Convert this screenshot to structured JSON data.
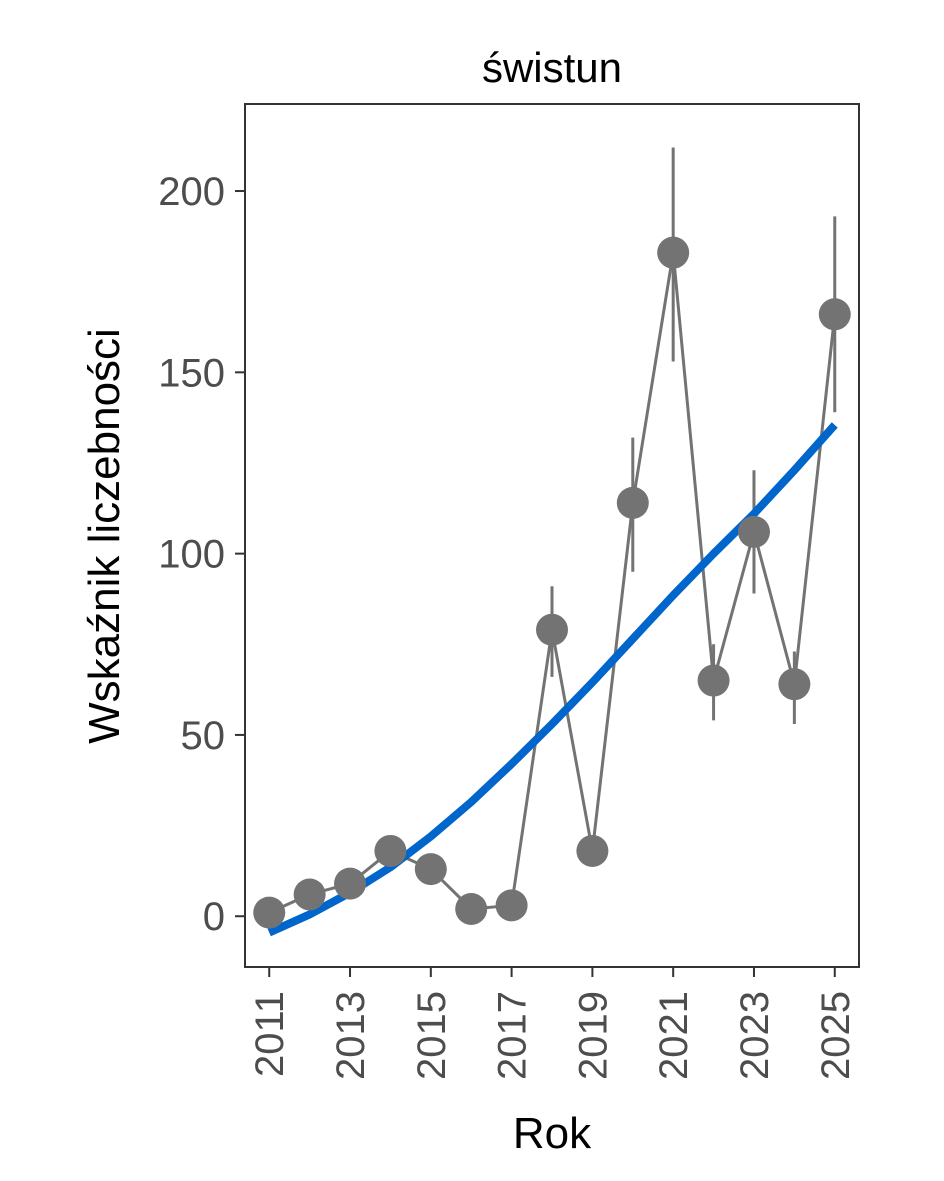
{
  "chart_data": {
    "type": "line",
    "title": "świstun",
    "xlabel": "Rok",
    "ylabel": "Wskaźnik liczebności",
    "xlim": [
      2010.4,
      2025.6
    ],
    "ylim": [
      -14,
      224
    ],
    "x_ticks": [
      2011,
      2013,
      2015,
      2017,
      2019,
      2021,
      2023,
      2025
    ],
    "y_ticks": [
      0,
      50,
      100,
      150,
      200
    ],
    "grid": false,
    "legend": "none",
    "series": [
      {
        "kind": "observed",
        "color": "#737373",
        "x": [
          2011,
          2012,
          2013,
          2014,
          2015,
          2016,
          2017,
          2018,
          2019,
          2020,
          2021,
          2022,
          2023,
          2024,
          2025
        ],
        "y": [
          1,
          6,
          9,
          18,
          13,
          2,
          3,
          79,
          18,
          114,
          183,
          65,
          106,
          64,
          166
        ],
        "lower": [
          1,
          6,
          9,
          18,
          13,
          2,
          3,
          66,
          18,
          95,
          153,
          54,
          89,
          53,
          139
        ],
        "upper": [
          1,
          6,
          9,
          18,
          13,
          2,
          3,
          91,
          18,
          132,
          212,
          75,
          123,
          73,
          193
        ]
      },
      {
        "kind": "trend",
        "color": "#0066cc",
        "x": [
          2011,
          2012,
          2013,
          2014,
          2015,
          2016,
          2017,
          2018,
          2019,
          2020,
          2021,
          2022,
          2023,
          2024,
          2025
        ],
        "y": [
          -4.5,
          0.5,
          6.5,
          13.5,
          22,
          31.5,
          42,
          53,
          64.5,
          76.5,
          88.5,
          100,
          111,
          123,
          135.5
        ]
      }
    ]
  }
}
